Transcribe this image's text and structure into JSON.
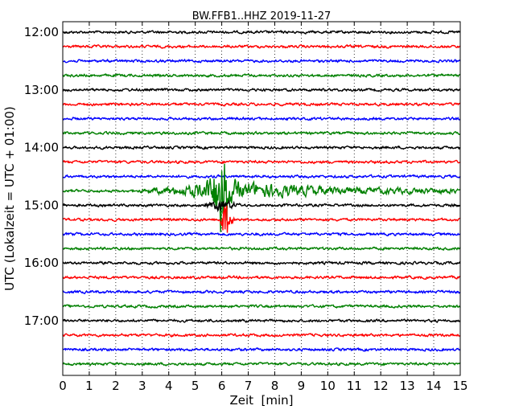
{
  "chart_data": {
    "type": "line",
    "title": "BW.FFB1..HHZ 2019-11-27",
    "xlabel": "Zeit  [min]",
    "ylabel": "UTC (Lokalzeit = UTC + 01:00)",
    "xlim": [
      0,
      15
    ],
    "x_ticks": [
      "0",
      "1",
      "2",
      "3",
      "4",
      "5",
      "6",
      "7",
      "8",
      "9",
      "10",
      "11",
      "12",
      "13",
      "14",
      "15"
    ],
    "y_tick_labels": [
      "12:00",
      "13:00",
      "14:00",
      "15:00",
      "16:00",
      "17:00"
    ],
    "grid": "vertical-dotted",
    "trace_colors": [
      "#000000",
      "#ff0000",
      "#0000ff",
      "#008000"
    ],
    "trace_count": 24,
    "trace_interval_min": 15,
    "event": {
      "trace_start": "14:45",
      "onset_min": 2.7,
      "peak_min": 6.0,
      "end_min": 15,
      "color": "#008000"
    }
  }
}
